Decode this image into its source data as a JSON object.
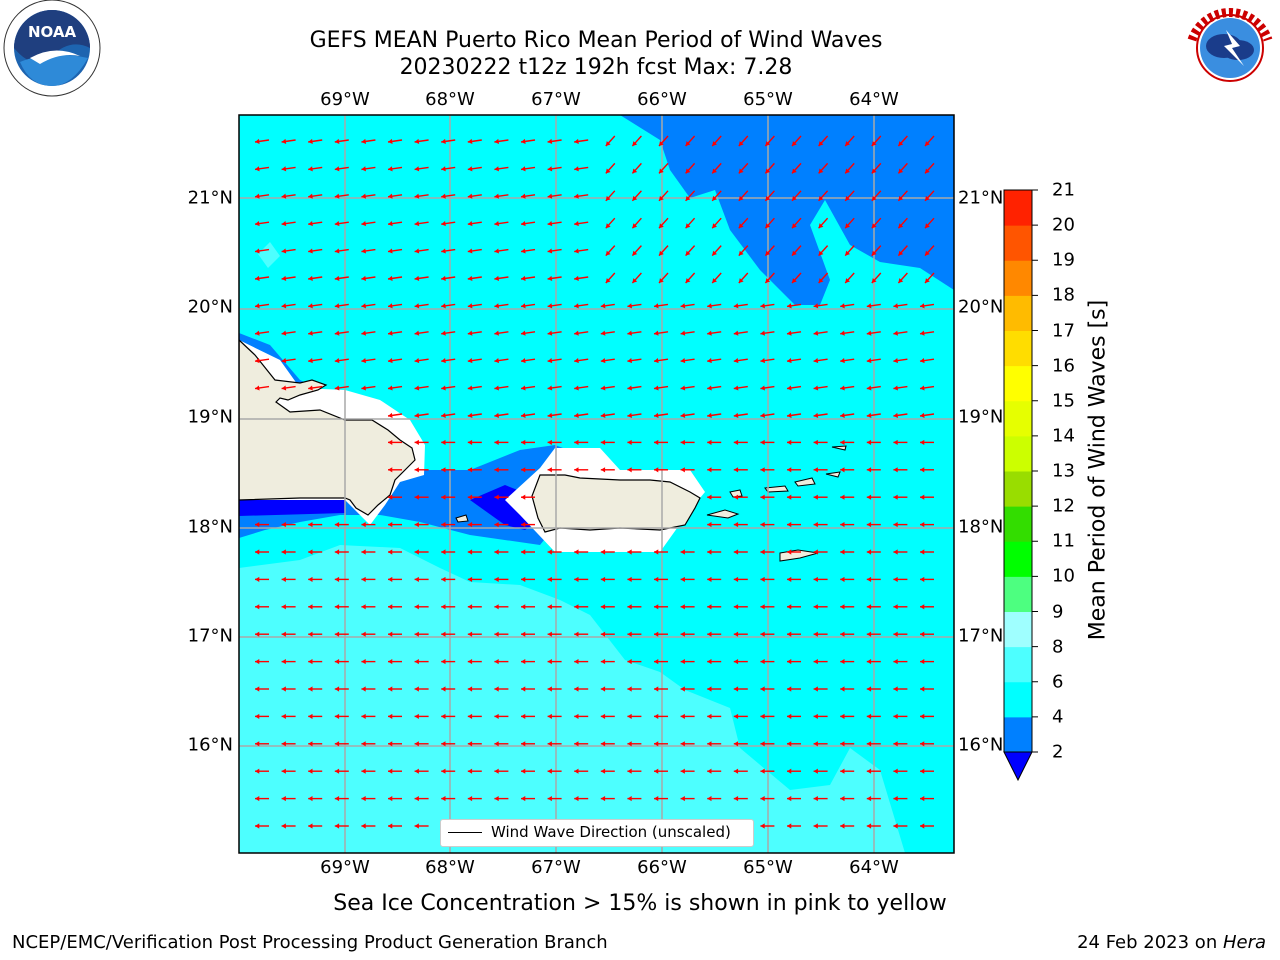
{
  "title": {
    "line1": "GEFS MEAN Puerto Rico Mean Period of Wind Waves",
    "line2": "20230222 t12z 192h fcst   Max: 7.28"
  },
  "map": {
    "lon_labels": [
      "69°W",
      "68°W",
      "67°W",
      "66°W",
      "65°W",
      "64°W"
    ],
    "lat_labels": [
      "21°N",
      "20°N",
      "19°N",
      "18°N",
      "17°N",
      "16°N"
    ],
    "regions": [
      "Hispaniola",
      "Mona Island",
      "Puerto Rico",
      "Vieques",
      "Culebra",
      "Virgin Islands",
      "St. Croix"
    ],
    "arrow_color": "#ff0000",
    "land_color": "#efedde",
    "wind_direction_toward": "west",
    "legend_label": "Wind Wave Direction (unscaled)"
  },
  "colorbar": {
    "label": "Mean Period of Wind Waves [s]",
    "ticks": [
      2,
      4,
      6,
      8,
      9,
      10,
      11,
      12,
      13,
      14,
      15,
      16,
      17,
      18,
      19,
      20,
      21
    ],
    "colors": [
      "#0080ff",
      "#00ffff",
      "#4dffff",
      "#9fffff",
      "#4dff80",
      "#00ff00",
      "#33dd00",
      "#99dd00",
      "#ccff00",
      "#e6ff00",
      "#ffff00",
      "#ffdd00",
      "#ffbb00",
      "#ff8800",
      "#ff5500",
      "#ff2200",
      "#ff0000"
    ],
    "under_color": "#0000ff",
    "scale_colors": {
      "2-4": "#0080ff",
      "4-6": "#00ffff",
      "6-8": "#4dffff",
      "8-9": "#9fffff",
      "below-2": "#0000ff"
    }
  },
  "note": "Sea Ice Concentration > 15% is shown in pink to yellow",
  "footer": {
    "left": "NCEP/EMC/Verification Post Processing Product Generation Branch",
    "right_prefix": "24 Feb 2023 on ",
    "right_machine": "Hera"
  },
  "logos": {
    "noaa": "NOAA",
    "nws": "NATIONAL WEATHER SERVICE",
    "noaa_ring": "NATIONAL OCEANIC AND ATMOSPHERIC ADMINISTRATION · U.S. DEPARTMENT OF COMMERCE"
  }
}
